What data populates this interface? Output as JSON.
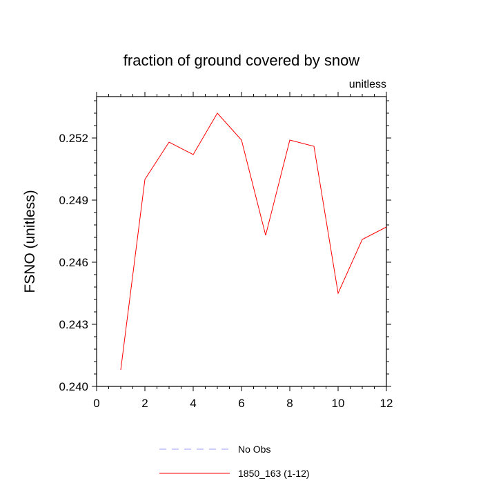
{
  "chart_data": {
    "type": "line",
    "title": "fraction of ground covered by snow",
    "units_label": "unitless",
    "ylabel": "FSNO  (unitless)",
    "xlabel": "",
    "xlim": [
      0,
      12
    ],
    "ylim": [
      0.24,
      0.254
    ],
    "xticks": [
      0,
      2,
      4,
      6,
      8,
      10,
      12
    ],
    "xtick_labels": [
      "0",
      "2",
      "4",
      "6",
      "8",
      "10",
      "12"
    ],
    "yticks": [
      0.24,
      0.243,
      0.246,
      0.249,
      0.252
    ],
    "ytick_labels": [
      "0.240",
      "0.243",
      "0.246",
      "0.249",
      "0.252"
    ],
    "grid": false,
    "legend_position": "bottom",
    "series": [
      {
        "name": "1850_163 (1-12)",
        "color": "#ff0000",
        "style": "solid",
        "x": [
          1,
          2,
          3,
          4,
          5,
          6,
          7,
          8,
          9,
          10,
          11,
          12
        ],
        "y": [
          0.2408,
          0.25,
          0.2518,
          0.2512,
          0.2532,
          0.2519,
          0.2473,
          0.2519,
          0.2516,
          0.2445,
          0.2471,
          0.2477
        ]
      }
    ],
    "legend": [
      {
        "label": "No Obs",
        "color": "#9999ff",
        "style": "dashed"
      },
      {
        "label": "1850_163 (1-12)",
        "color": "#ff0000",
        "style": "solid"
      }
    ]
  }
}
